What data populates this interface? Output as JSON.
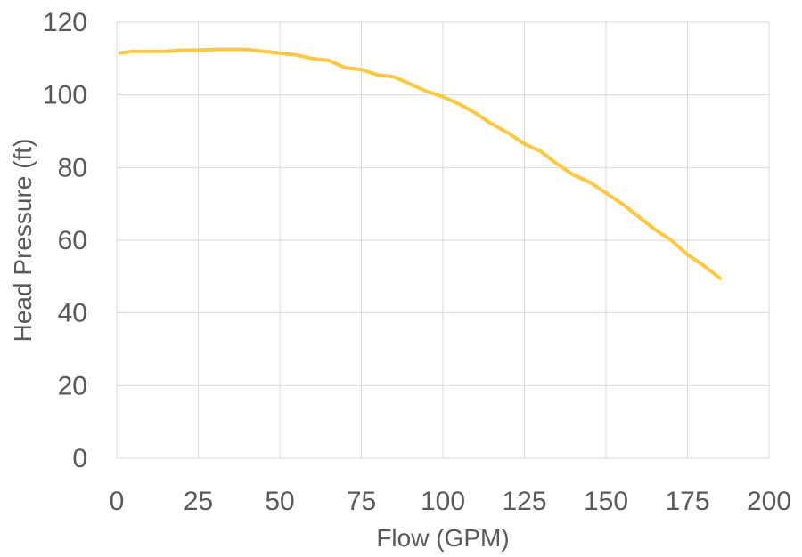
{
  "chart_data": {
    "type": "line",
    "title": "",
    "xlabel": "Flow (GPM)",
    "ylabel": "Head Pressure (ft)",
    "xlim": [
      0,
      200
    ],
    "ylim": [
      0,
      120
    ],
    "xticks": [
      0,
      25,
      50,
      75,
      100,
      125,
      150,
      175,
      200
    ],
    "yticks": [
      0,
      20,
      40,
      60,
      80,
      100,
      120
    ],
    "grid": true,
    "legend": "none",
    "colors": {
      "series": "#FFC83D",
      "grid": "#D9D9D9",
      "text": "#595959"
    },
    "series": [
      {
        "x": [
          1,
          5,
          10,
          15,
          20,
          25,
          30,
          35,
          40,
          45,
          50,
          55,
          60,
          65,
          70,
          75,
          80,
          85,
          90,
          95,
          100,
          105,
          110,
          115,
          120,
          125,
          130,
          135,
          140,
          145,
          150,
          155,
          160,
          165,
          170,
          175,
          180,
          185
        ],
        "y": [
          111.5,
          112,
          112,
          112,
          112.3,
          112.3,
          112.5,
          112.5,
          112.5,
          112,
          111.5,
          111,
          110,
          109.5,
          107.5,
          107,
          105.5,
          105,
          103,
          101,
          99.5,
          97.5,
          95,
          92,
          89.5,
          86.5,
          84.5,
          81,
          78,
          76,
          73,
          70,
          66.5,
          63,
          60,
          56,
          53,
          49.5
        ]
      }
    ]
  }
}
